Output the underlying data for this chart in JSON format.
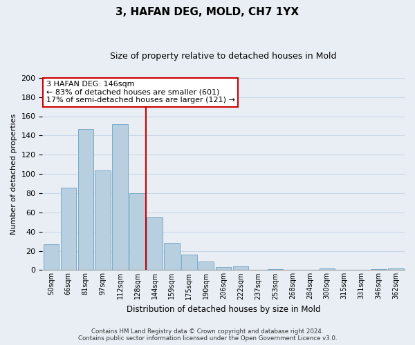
{
  "title": "3, HAFAN DEG, MOLD, CH7 1YX",
  "subtitle": "Size of property relative to detached houses in Mold",
  "xlabel": "Distribution of detached houses by size in Mold",
  "ylabel": "Number of detached properties",
  "bar_labels": [
    "50sqm",
    "66sqm",
    "81sqm",
    "97sqm",
    "112sqm",
    "128sqm",
    "144sqm",
    "159sqm",
    "175sqm",
    "190sqm",
    "206sqm",
    "222sqm",
    "237sqm",
    "253sqm",
    "268sqm",
    "284sqm",
    "300sqm",
    "315sqm",
    "331sqm",
    "346sqm",
    "362sqm"
  ],
  "bar_values": [
    27,
    86,
    147,
    104,
    152,
    80,
    55,
    28,
    16,
    9,
    3,
    4,
    0,
    1,
    0,
    0,
    2,
    0,
    0,
    1,
    2
  ],
  "bar_color": "#b8cfe0",
  "bar_edge_color": "#7aaac8",
  "marker_bar_index": 6,
  "ylim": [
    0,
    200
  ],
  "yticks": [
    0,
    20,
    40,
    60,
    80,
    100,
    120,
    140,
    160,
    180,
    200
  ],
  "annotation_line1": "3 HAFAN DEG: 146sqm",
  "annotation_line2": "← 83% of detached houses are smaller (601)",
  "annotation_line3": "17% of semi-detached houses are larger (121) →",
  "footer_line1": "Contains HM Land Registry data © Crown copyright and database right 2024.",
  "footer_line2": "Contains public sector information licensed under the Open Government Licence v3.0.",
  "grid_color": "#c8d8e8",
  "background_color": "#e8eef4",
  "title_fontsize": 11,
  "subtitle_fontsize": 9
}
